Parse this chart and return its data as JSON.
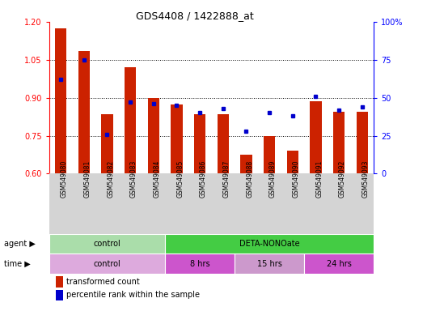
{
  "title": "GDS4408 / 1422888_at",
  "samples": [
    "GSM549080",
    "GSM549081",
    "GSM549082",
    "GSM549083",
    "GSM549084",
    "GSM549085",
    "GSM549086",
    "GSM549087",
    "GSM549088",
    "GSM549089",
    "GSM549090",
    "GSM549091",
    "GSM549092",
    "GSM549093"
  ],
  "red_values": [
    1.175,
    1.085,
    0.835,
    1.02,
    0.9,
    0.875,
    0.835,
    0.835,
    0.675,
    0.75,
    0.69,
    0.885,
    0.845,
    0.845
  ],
  "blue_percentile": [
    62,
    75,
    26,
    47,
    46,
    45,
    40,
    43,
    28,
    40,
    38,
    51,
    42,
    44
  ],
  "ylim_left": [
    0.6,
    1.2
  ],
  "ylim_right": [
    0,
    100
  ],
  "yticks_left": [
    0.6,
    0.75,
    0.9,
    1.05,
    1.2
  ],
  "yticks_right": [
    0,
    25,
    50,
    75,
    100
  ],
  "bar_color": "#cc2200",
  "dot_color": "#0000cc",
  "agent_groups": [
    {
      "label": "control",
      "start": 0,
      "end": 5,
      "color": "#aaddaa"
    },
    {
      "label": "DETA-NONOate",
      "start": 5,
      "end": 14,
      "color": "#44cc44"
    }
  ],
  "time_groups": [
    {
      "label": "control",
      "start": 0,
      "end": 5,
      "color": "#ddaadd"
    },
    {
      "label": "8 hrs",
      "start": 5,
      "end": 8,
      "color": "#cc55cc"
    },
    {
      "label": "15 hrs",
      "start": 8,
      "end": 11,
      "color": "#cc99cc"
    },
    {
      "label": "24 hrs",
      "start": 11,
      "end": 14,
      "color": "#cc55cc"
    }
  ],
  "legend": [
    {
      "label": "transformed count",
      "color": "#cc2200"
    },
    {
      "label": "percentile rank within the sample",
      "color": "#0000cc"
    }
  ],
  "tick_bg": "#d4d4d4"
}
